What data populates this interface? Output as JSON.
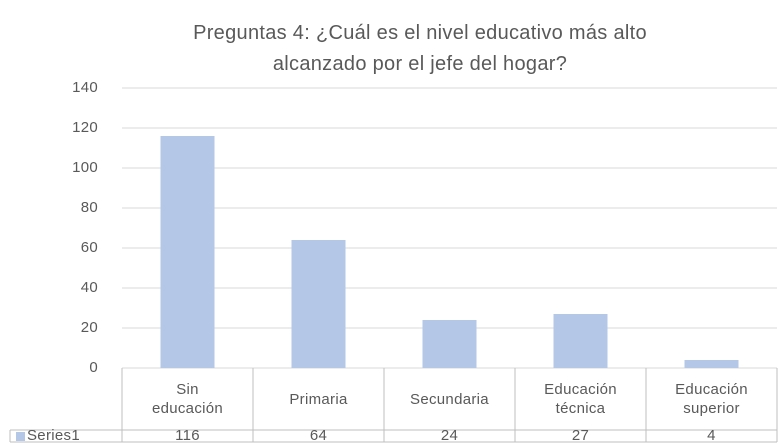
{
  "chart_data": {
    "type": "bar",
    "title": "Preguntas 4: ¿Cuál es el nivel educativo más alto alcanzado por el jefe del hogar?",
    "categories": [
      "Sin educación",
      "Primaria",
      "Secundaria",
      "Educación técnica",
      "Educación superior"
    ],
    "series": [
      {
        "name": "Series1",
        "color": "#b4c7e7",
        "values": [
          116,
          64,
          24,
          27,
          4
        ]
      }
    ],
    "ylim": [
      0,
      140
    ],
    "yticks": [
      0,
      20,
      40,
      60,
      80,
      100,
      120,
      140
    ],
    "grid": true,
    "data_table": true
  }
}
